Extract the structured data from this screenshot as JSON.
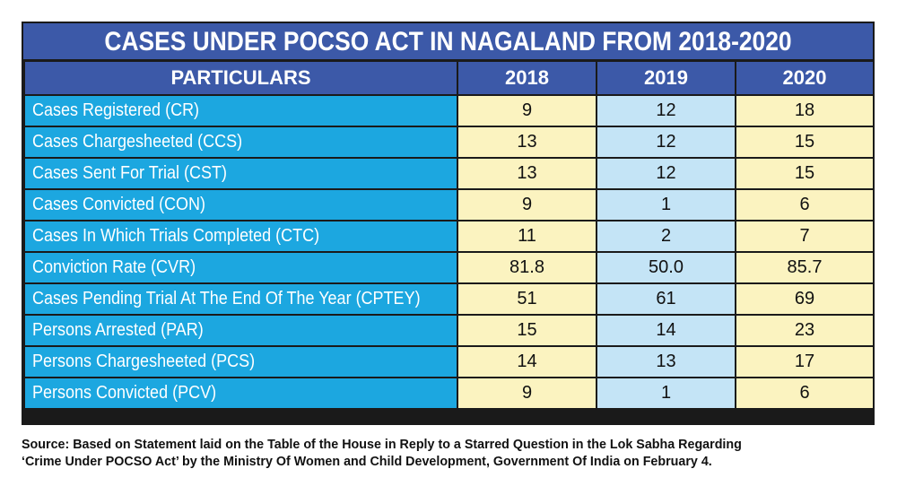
{
  "title": "CASES UNDER POCSO ACT IN NAGALAND FROM 2018-2020",
  "header": {
    "particulars": "PARTICULARS",
    "years": [
      "2018",
      "2019",
      "2020"
    ]
  },
  "rows": [
    {
      "label": "Cases Registered (CR)",
      "values": [
        "9",
        "12",
        "18"
      ]
    },
    {
      "label": "Cases Chargesheeted (CCS)",
      "values": [
        "13",
        "12",
        "15"
      ]
    },
    {
      "label": "Cases Sent For Trial (CST)",
      "values": [
        "13",
        "12",
        "15"
      ]
    },
    {
      "label": "Cases Convicted (CON)",
      "values": [
        "9",
        "1",
        "6"
      ]
    },
    {
      "label": "Cases In Which Trials Completed (CTC)",
      "values": [
        "11",
        "2",
        "7"
      ]
    },
    {
      "label": "Conviction Rate (CVR)",
      "values": [
        "81.8",
        "50.0",
        "85.7"
      ]
    },
    {
      "label": "Cases Pending Trial At The End Of The Year (CPTEY)",
      "values": [
        "51",
        "61",
        "69"
      ]
    },
    {
      "label": "Persons Arrested (PAR)",
      "values": [
        "15",
        "14",
        "23"
      ]
    },
    {
      "label": "Persons Chargesheeted (PCS)",
      "values": [
        "14",
        "13",
        "17"
      ]
    },
    {
      "label": "Persons Convicted (PCV)",
      "values": [
        "9",
        "1",
        "6"
      ]
    }
  ],
  "source_line1": "Source: Based on Statement laid on the Table of the House in Reply to a Starred Question in the Lok Sabha Regarding",
  "source_line2": "‘Crime Under POCSO Act’ by the Ministry Of Women and Child Development, Government Of India on February 4.",
  "colors": {
    "header_blue": "#3c59a8",
    "label_cyan": "#1ca7e0",
    "col_yellow": "#fbf3c0",
    "col_lightblue": "#c4e4f6"
  },
  "chart_data": {
    "type": "table",
    "title": "CASES UNDER POCSO ACT IN NAGALAND FROM 2018-2020",
    "columns": [
      "PARTICULARS",
      "2018",
      "2019",
      "2020"
    ],
    "rows": [
      [
        "Cases Registered (CR)",
        9,
        12,
        18
      ],
      [
        "Cases Chargesheeted (CCS)",
        13,
        12,
        15
      ],
      [
        "Cases Sent For Trial (CST)",
        13,
        12,
        15
      ],
      [
        "Cases Convicted (CON)",
        9,
        1,
        6
      ],
      [
        "Cases In Which Trials Completed (CTC)",
        11,
        2,
        7
      ],
      [
        "Conviction Rate (CVR)",
        81.8,
        50.0,
        85.7
      ],
      [
        "Cases Pending Trial At The End Of The Year (CPTEY)",
        51,
        61,
        69
      ],
      [
        "Persons Arrested (PAR)",
        15,
        14,
        23
      ],
      [
        "Persons Chargesheeted (PCS)",
        14,
        13,
        17
      ],
      [
        "Persons Convicted (PCV)",
        9,
        1,
        6
      ]
    ]
  }
}
